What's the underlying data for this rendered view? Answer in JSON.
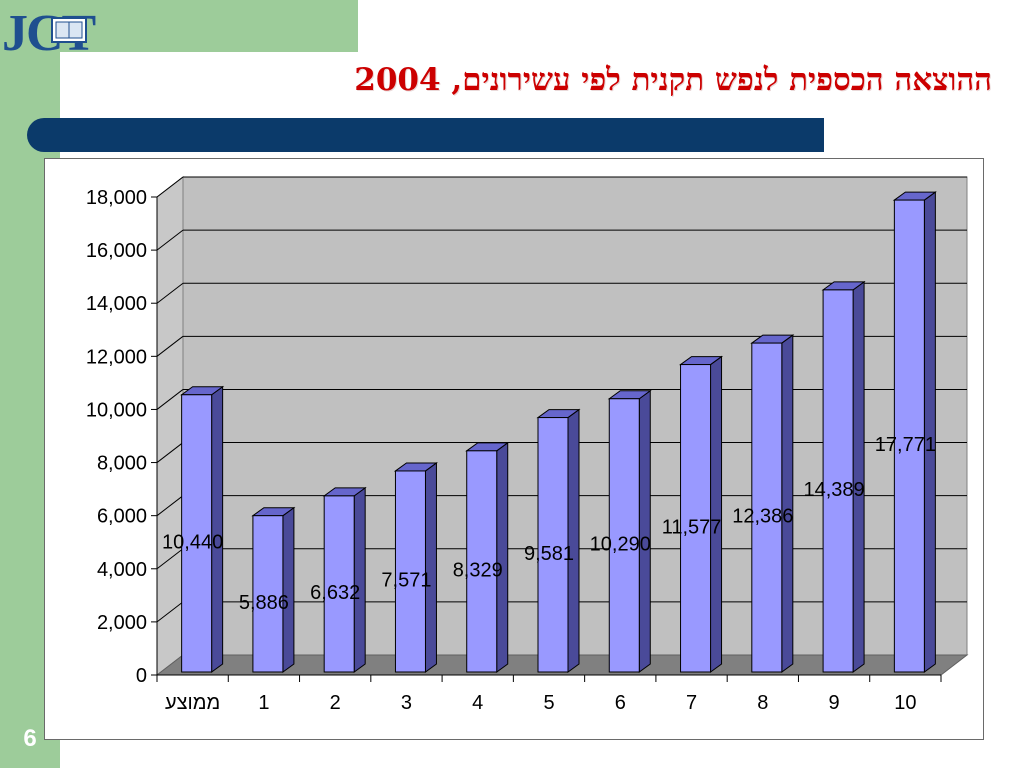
{
  "logo": {
    "text": "JCT"
  },
  "slide": {
    "title": "ההוצאה הכספית לנפש תקנית לפי עשירונים, 2004",
    "page_number": "6"
  },
  "colors": {
    "bar_front": "#9999ff",
    "bar_side": "#4a4a99",
    "bar_top": "#6666cc",
    "title": "#cc0000",
    "decor_bar": "#0b3a6a",
    "side_panel": "#9dcc9a",
    "plot_back": "#c0c0c0",
    "plot_floor": "#808080"
  },
  "chart_data": {
    "type": "bar",
    "title": "",
    "xlabel": "",
    "ylabel": "",
    "categories": [
      "ממוצע",
      "1",
      "2",
      "3",
      "4",
      "5",
      "6",
      "7",
      "8",
      "9",
      "10"
    ],
    "values": [
      10440,
      5886,
      6632,
      7571,
      8329,
      9581,
      10290,
      11577,
      12386,
      14389,
      17771
    ],
    "data_labels": [
      "10,440",
      "5,886",
      "6,632",
      "7,571",
      "8,329",
      "9,581",
      "10,290",
      "11,577",
      "12,386",
      "14,389",
      "17,771"
    ],
    "y_ticks": [
      "0",
      "2,000",
      "4,000",
      "6,000",
      "8,000",
      "10,000",
      "12,000",
      "14,000",
      "16,000",
      "18,000"
    ],
    "ylim": [
      0,
      18000
    ],
    "grid": true,
    "style": "3d-column",
    "legend": "none"
  }
}
